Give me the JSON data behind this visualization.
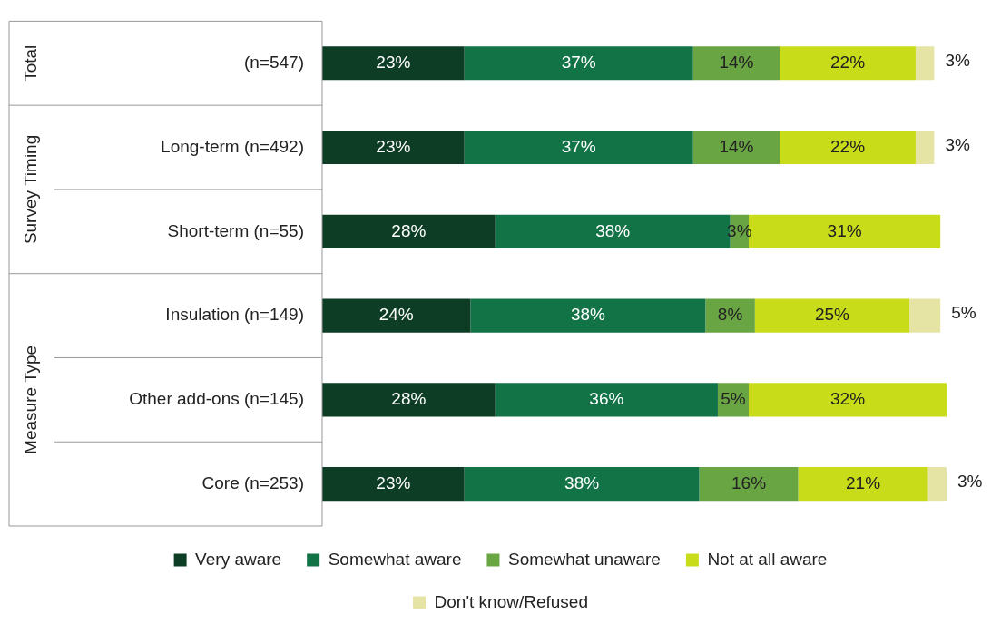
{
  "chart_data": {
    "type": "bar",
    "orientation": "horizontal",
    "stacked": true,
    "tick_labels": "y",
    "grid": false,
    "legend": "bottom",
    "categories": [
      "(n=547)",
      "Long-term (n=492)",
      "Short-term (n=55)",
      "Insulation (n=149)",
      "Other add-ons (n=145)",
      "Core (n=253)"
    ],
    "series": [
      {
        "name": "Very aware",
        "color": "#0d3d24",
        "values": [
          23,
          23,
          28,
          24,
          28,
          23
        ],
        "value_labels": [
          "23%",
          "23%",
          "28%",
          "24%",
          "28%",
          "23%"
        ]
      },
      {
        "name": "Somewhat aware",
        "color": "#127347",
        "values": [
          37,
          37,
          38,
          38,
          36,
          38
        ],
        "value_labels": [
          "37%",
          "37%",
          "38%",
          "38%",
          "36%",
          "38%"
        ]
      },
      {
        "name": "Somewhat unaware",
        "color": "#6aa544",
        "values": [
          14,
          14,
          3,
          8,
          5,
          16
        ],
        "value_labels": [
          "14%",
          "14%",
          "3%",
          "8%",
          "5%",
          "16%"
        ]
      },
      {
        "name": "Not at all aware",
        "color": "#c8dc1a",
        "values": [
          22,
          22,
          31,
          25,
          32,
          21
        ],
        "value_labels": [
          "22%",
          "22%",
          "31%",
          "25%",
          "32%",
          "21%"
        ]
      },
      {
        "name": "Don't know/Refused",
        "color": "#e6e4a4",
        "values": [
          3,
          3,
          null,
          5,
          null,
          3
        ],
        "value_labels": [
          "3%",
          "3%",
          null,
          "5%",
          null,
          "3%"
        ]
      }
    ],
    "annotations": [
      "Total",
      "Survey Timing",
      "Measure Type"
    ]
  }
}
